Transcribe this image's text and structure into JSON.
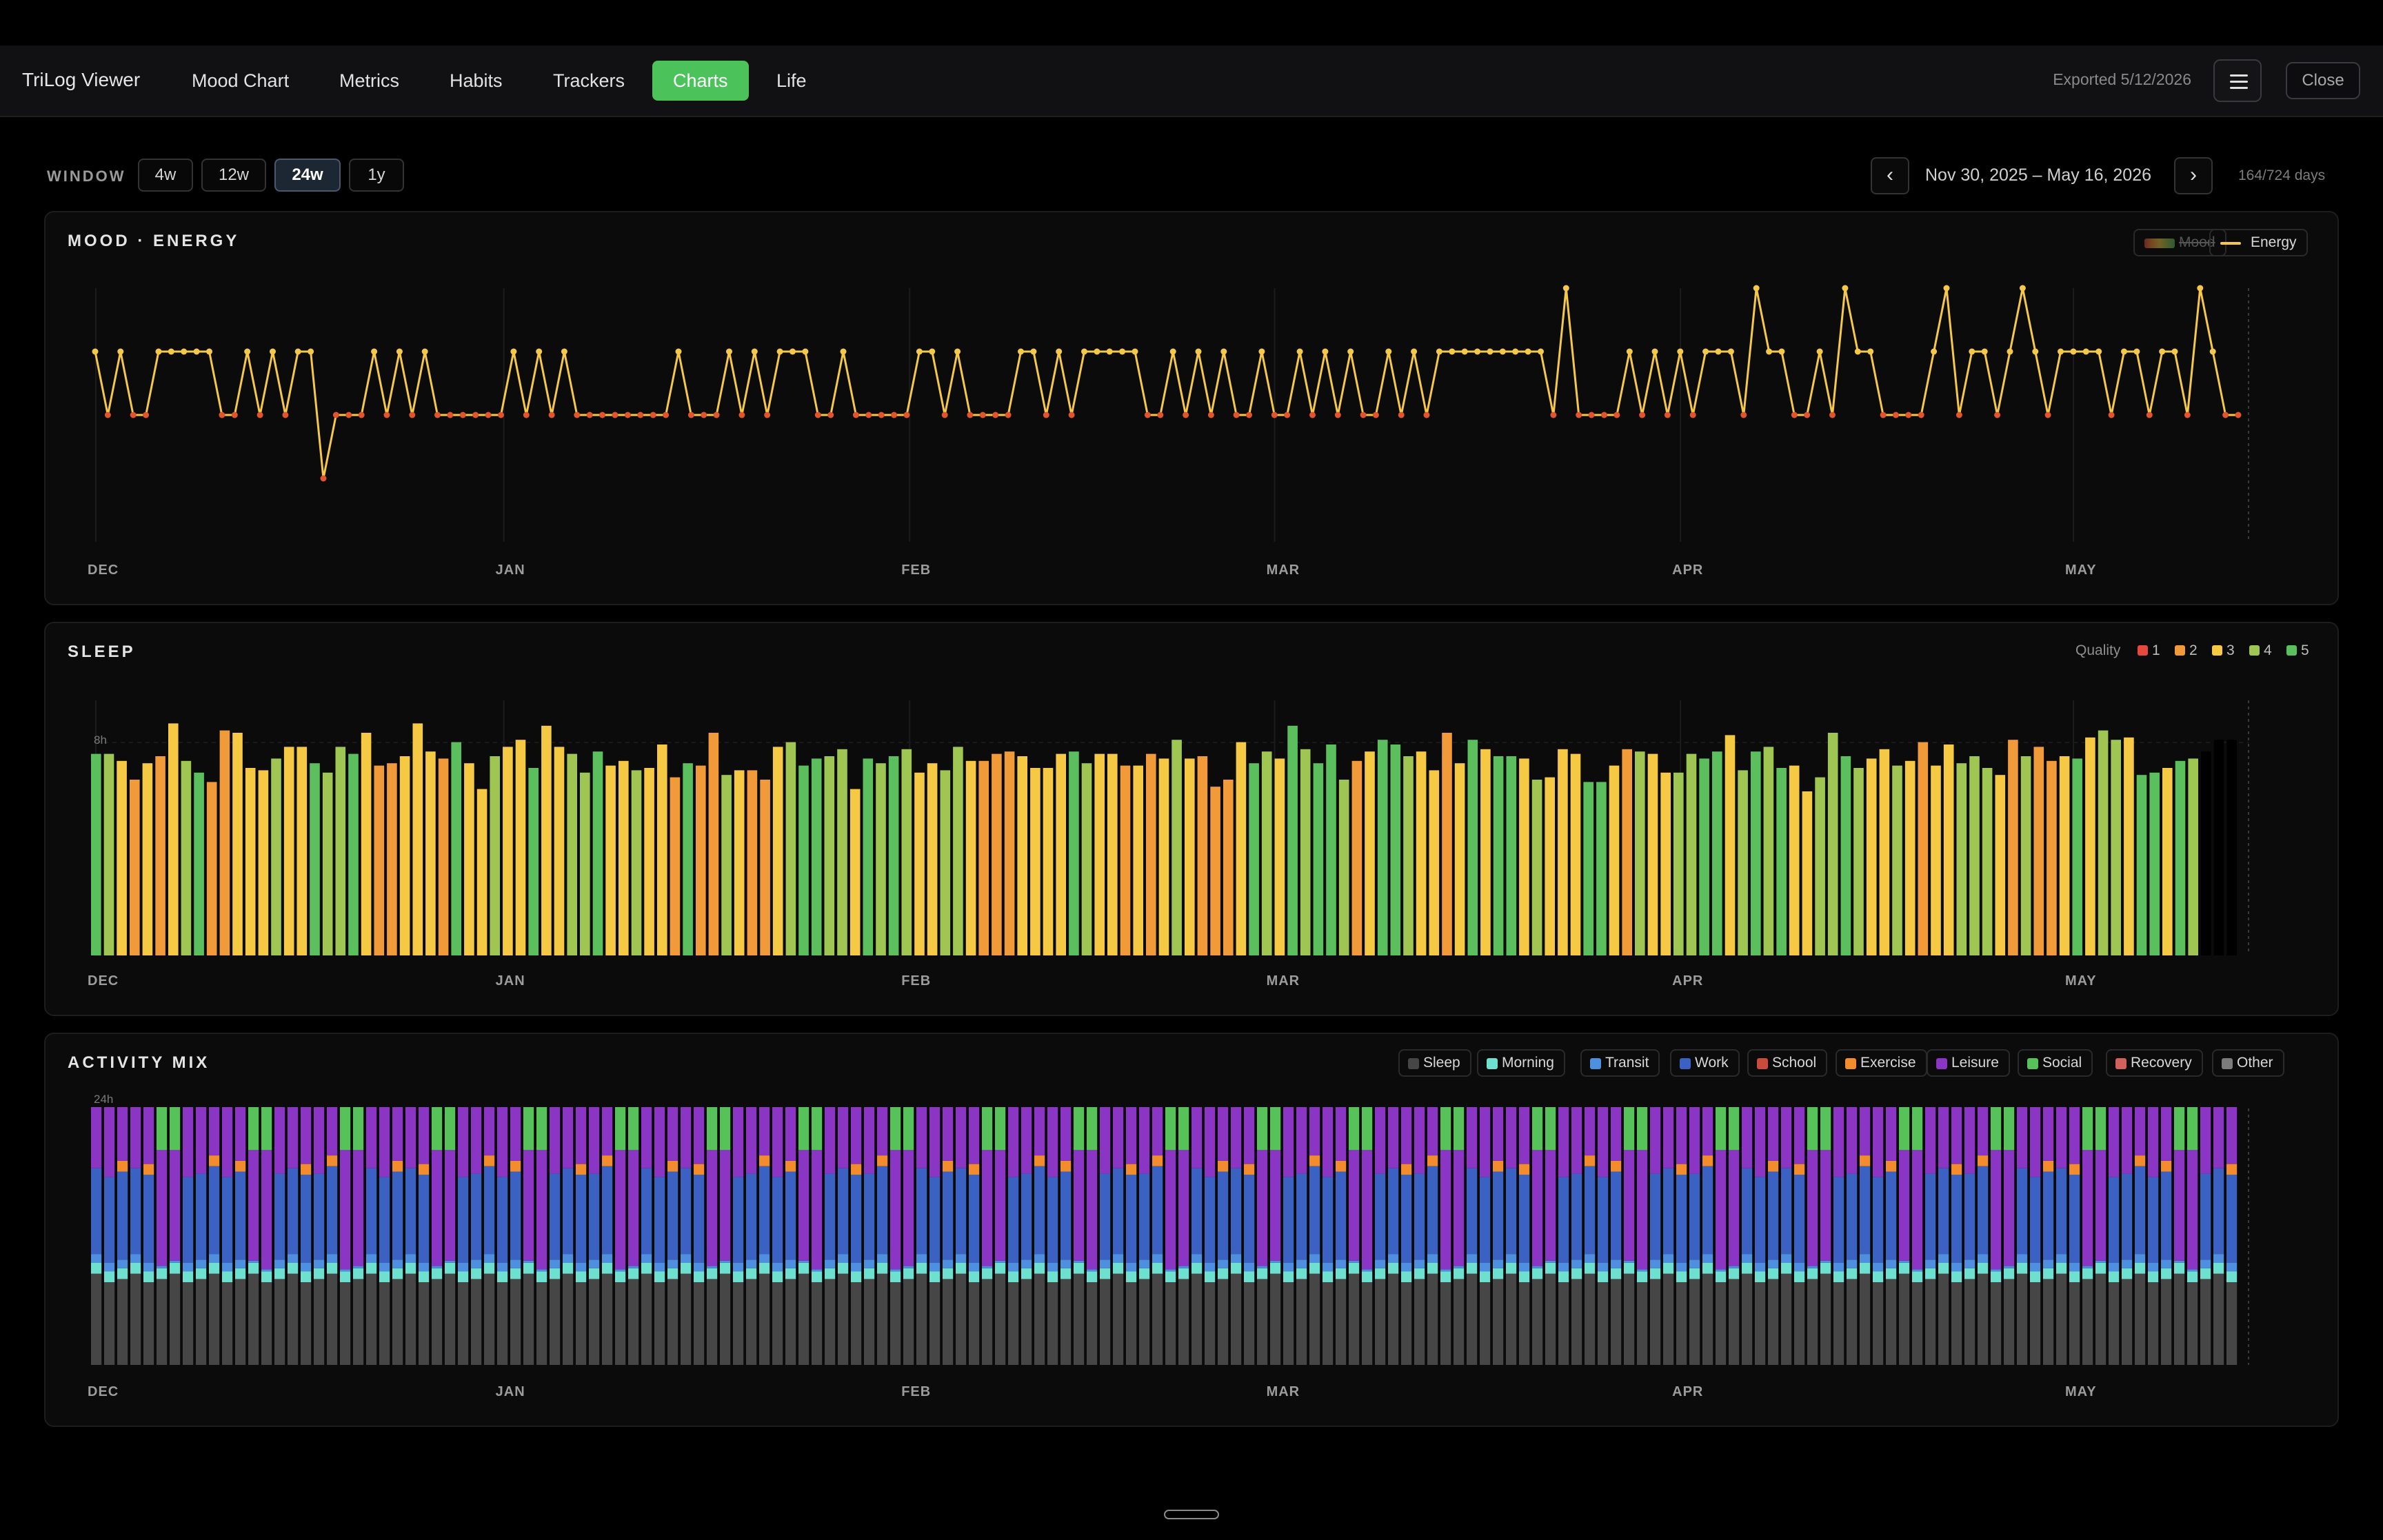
{
  "app": {
    "title": "TriLog Viewer",
    "tabs": [
      {
        "label": "Mood Chart",
        "active": false
      },
      {
        "label": "Metrics",
        "active": false
      },
      {
        "label": "Habits",
        "active": false
      },
      {
        "label": "Trackers",
        "active": false
      },
      {
        "label": "Charts",
        "active": true
      },
      {
        "label": "Life",
        "active": false
      }
    ],
    "exported": "Exported 5/12/2026",
    "menu_icon": "hamburger-menu-icon",
    "close_label": "Close"
  },
  "controls": {
    "window_label": "WINDOW",
    "windows": [
      {
        "label": "4w",
        "active": false
      },
      {
        "label": "12w",
        "active": false
      },
      {
        "label": "24w",
        "active": true
      },
      {
        "label": "1y",
        "active": false
      }
    ],
    "prev_label": "‹",
    "next_label": "›",
    "date_range": "Nov 30, 2025 – May 16, 2026",
    "days": "164/724 days"
  },
  "month_ticks": [
    "DEC",
    "JAN",
    "FEB",
    "MAR",
    "APR",
    "MAY"
  ],
  "colors": {
    "energy_line": "#f5c84a",
    "energy_low_point": "#e0542e",
    "quality": {
      "1": "#e5483d",
      "2": "#f09a3a",
      "3": "#f6c945",
      "4": "#9fc653",
      "5": "#5bbf5e"
    },
    "activity": {
      "sleep": "#464646",
      "morning": "#6ee0d0",
      "transit": "#4f8fe0",
      "work": "#3b62c2",
      "school": "#c94b3b",
      "exercise": "#f28c2d",
      "leisure": "#8a35c4",
      "social": "#57c25a",
      "recovery": "#d0625b",
      "other": "#7c7c7c"
    }
  },
  "mood_panel": {
    "title": "MOOD · ENERGY",
    "legend": [
      {
        "label": "Mood",
        "enabled": false,
        "icon": "mood-gradient-icon"
      },
      {
        "label": "Energy",
        "enabled": true,
        "icon": "energy-line-icon"
      }
    ]
  },
  "sleep_panel": {
    "title": "SLEEP",
    "quality_label": "Quality",
    "quality_levels": [
      "1",
      "2",
      "3",
      "4",
      "5"
    ],
    "y_label": "8h"
  },
  "activity_panel": {
    "title": "ACTIVITY MIX",
    "y_label": "24h",
    "legend": [
      "Sleep",
      "Morning",
      "Transit",
      "Work",
      "School",
      "Exercise",
      "Leisure",
      "Social",
      "Recovery",
      "Other"
    ]
  },
  "chart_data": [
    {
      "type": "line",
      "title": "MOOD · ENERGY",
      "series": [
        {
          "name": "Energy",
          "values": [
            3,
            2,
            3,
            2,
            2,
            3,
            3,
            3,
            3,
            3,
            2,
            2,
            3,
            2,
            3,
            2,
            3,
            3,
            1,
            2,
            2,
            2,
            3,
            2,
            3,
            2,
            3,
            2,
            2,
            2,
            2,
            2,
            2,
            3,
            2,
            3,
            2,
            3,
            2,
            2,
            2,
            2,
            2,
            2,
            2,
            2,
            3,
            2,
            2,
            2,
            3,
            2,
            3,
            2,
            3,
            3,
            3,
            2,
            2,
            3,
            2,
            2,
            2,
            2,
            2,
            3,
            3,
            2,
            3,
            2,
            2,
            2,
            2,
            3,
            3,
            2,
            3,
            2,
            3,
            3,
            3,
            3,
            3,
            2,
            2,
            3,
            2,
            3,
            2,
            3,
            2,
            2,
            3,
            2,
            2,
            3,
            2,
            3,
            2,
            3,
            2,
            2,
            3,
            2,
            3,
            2,
            3,
            3,
            3,
            3,
            3,
            3,
            3,
            3,
            3,
            2,
            4,
            2,
            2,
            2,
            2,
            3,
            2,
            3,
            2,
            3,
            2,
            3,
            3,
            3,
            2,
            4,
            3,
            3,
            2,
            2,
            3,
            2,
            4,
            3,
            3,
            2,
            2,
            2,
            2,
            3,
            4,
            2,
            3,
            3,
            2,
            3,
            4,
            3,
            2,
            3,
            3,
            3,
            3,
            2,
            3,
            3,
            2,
            3,
            3,
            2,
            4,
            3,
            2,
            2
          ]
        }
      ],
      "x_ticks": [
        "DEC",
        "JAN",
        "FEB",
        "MAR",
        "APR",
        "MAY"
      ]
    },
    {
      "type": "bar",
      "title": "SLEEP",
      "ylabel": "8h",
      "values_hours": [
        8.6,
        8.6,
        8.3,
        7.5,
        8.2,
        8.5,
        9.9,
        8.3,
        7.8,
        7.4,
        9.6,
        9.5,
        8.0,
        7.9,
        8.4,
        8.9,
        8.9,
        8.2,
        7.8,
        8.9,
        8.6,
        9.5,
        8.1,
        8.2,
        8.5,
        9.9,
        8.7,
        8.4,
        9.1,
        8.2,
        7.1,
        8.5,
        8.9,
        9.2,
        8.0,
        9.8,
        8.9,
        8.6,
        7.8,
        8.7,
        8.1,
        8.3,
        7.9,
        8.0,
        9.0,
        7.6,
        8.2,
        8.1,
        9.5,
        7.7,
        7.9,
        7.9,
        7.5,
        8.9,
        9.1,
        8.1,
        8.4,
        8.5,
        8.8,
        7.1,
        8.4,
        8.2,
        8.5,
        8.8,
        7.8,
        8.2,
        7.9,
        8.9,
        8.3,
        8.3,
        8.6,
        8.7,
        8.5,
        8.0,
        8.0,
        8.6,
        8.7,
        8.2,
        8.6,
        8.6,
        8.1,
        8.1,
        8.6,
        8.4,
        9.2,
        8.4,
        8.5,
        7.2,
        7.5,
        9.1,
        8.2,
        8.7,
        8.4,
        9.8,
        8.8,
        8.2,
        9.0,
        7.5,
        8.3,
        8.7,
        9.2,
        9.0,
        8.5,
        8.7,
        7.9,
        9.5,
        8.2,
        9.2,
        8.8,
        8.5,
        8.5,
        8.4,
        7.5,
        7.6,
        8.8,
        8.6,
        7.4,
        7.4,
        8.1,
        8.8,
        8.7,
        8.6,
        7.8,
        7.8,
        8.6,
        8.4,
        8.7,
        9.4,
        7.9,
        8.7,
        8.9,
        8.0,
        8.1,
        7.0,
        7.6,
        9.5,
        8.5,
        8.0,
        8.4,
        8.8,
        8.1,
        8.3,
        9.1,
        8.1,
        9.0,
        8.2,
        8.5,
        8.0,
        7.7,
        9.2,
        8.5,
        8.9,
        8.3,
        8.5,
        8.4,
        9.3,
        9.6,
        9.2,
        9.3,
        7.7,
        7.8,
        8.0,
        8.3,
        8.4,
        8.7,
        9.2,
        9.2
      ],
      "quality": [
        5,
        4,
        3,
        2,
        3,
        2,
        3,
        4,
        5,
        2,
        2,
        3,
        3,
        3,
        4,
        3,
        3,
        5,
        4,
        4,
        5,
        3,
        2,
        2,
        3,
        3,
        3,
        2,
        5,
        3,
        3,
        4,
        3,
        3,
        5,
        3,
        3,
        4,
        4,
        5,
        3,
        3,
        4,
        3,
        3,
        2,
        5,
        2,
        2,
        4,
        3,
        2,
        2,
        3,
        4,
        5,
        5,
        4,
        4,
        3,
        5,
        4,
        5,
        4,
        3,
        3,
        4,
        4,
        3,
        2,
        2,
        2,
        3,
        3,
        3,
        3,
        5,
        4,
        3,
        3,
        2,
        3,
        2,
        3,
        4,
        3,
        2,
        2,
        2,
        3,
        5,
        4,
        3,
        5,
        4,
        5,
        5,
        4,
        2,
        3,
        5,
        5,
        4,
        3,
        3,
        2,
        3,
        5,
        3,
        5,
        5,
        3,
        4,
        3,
        3,
        3,
        5,
        5,
        3,
        2,
        4,
        3,
        3,
        4,
        4,
        5,
        5,
        3,
        4,
        5,
        4,
        5,
        3,
        3,
        4,
        4,
        5,
        4,
        3,
        3,
        4,
        3,
        2,
        3,
        3,
        4,
        4,
        4,
        3,
        2,
        4,
        2,
        2,
        3,
        5,
        3,
        4,
        4,
        3,
        5,
        5,
        3,
        5,
        4
      ]
    },
    {
      "type": "bar",
      "title": "ACTIVITY MIX",
      "stacked": true,
      "ylabel": "24h",
      "series": [
        "Sleep",
        "Morning",
        "Transit",
        "Work",
        "School",
        "Exercise",
        "Leisure",
        "Social",
        "Recovery",
        "Other"
      ],
      "day_pattern_hours": {
        "weekday": {
          "Sleep": 8.0,
          "Morning": 1.0,
          "Transit": 0.8,
          "Work": 8.0,
          "Exercise": 0.0,
          "Leisure": 6.2
        },
        "weekday_exercise": {
          "Sleep": 8.0,
          "Morning": 1.0,
          "Transit": 0.8,
          "Work": 8.2,
          "Exercise": 1.0,
          "Leisure": 5.0
        },
        "weekend": {
          "Sleep": 8.0,
          "Morning": 1.0,
          "Transit": 0.2,
          "Work": 0.0,
          "Leisure": 10.8,
          "Social": 4.0
        }
      }
    }
  ]
}
